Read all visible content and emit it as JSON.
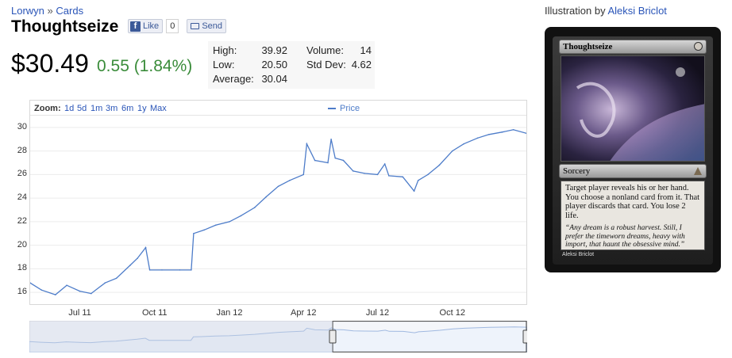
{
  "breadcrumb": {
    "set": "Lorwyn",
    "sep": "»",
    "section": "Cards"
  },
  "card": {
    "name": "Thoughtseize"
  },
  "social": {
    "like_label": "Like",
    "like_count": "0",
    "send_label": "Send"
  },
  "price": {
    "current": "$30.49",
    "change": "0.55 (1.84%)",
    "change_color": "#3a8c3a"
  },
  "stats": {
    "high_label": "High:",
    "high": "39.92",
    "low_label": "Low:",
    "low": "20.50",
    "average_label": "Average:",
    "average": "30.04",
    "volume_label": "Volume:",
    "volume": "14",
    "stddev_label": "Std Dev:",
    "stddev": "4.62"
  },
  "zoom": {
    "label": "Zoom:",
    "options": [
      "1d",
      "5d",
      "1m",
      "3m",
      "6m",
      "1y",
      "Max"
    ]
  },
  "illustration": {
    "prefix": "Illustration by",
    "artist": "Aleksi Briclot"
  },
  "card_image": {
    "name": "Thoughtseize",
    "type_line": "Sorcery",
    "rules": "Target player reveals his or her hand. You choose a nonland card from it. That player discards that card. You lose 2 life.",
    "flavor": "“Any dream is a robust harvest. Still, I prefer the timeworn dreams, heavy with import, that haunt the obsessive mind.”",
    "artist_credit": "Aleksi Briclot"
  },
  "colors": {
    "line": "#4d7cc9",
    "link": "#2a55b8",
    "navigator_fill": "#eef3fb"
  },
  "chart_data": {
    "type": "line",
    "legend": [
      "Price"
    ],
    "ylim": [
      15,
      31
    ],
    "yticks": [
      16,
      18,
      20,
      22,
      24,
      26,
      28,
      30
    ],
    "xtick_labels": [
      "Jul 11",
      "Oct 11",
      "Jan 12",
      "Apr 12",
      "Jul 12",
      "Oct 12"
    ],
    "xtick_dates": [
      "2011-07-01",
      "2011-10-01",
      "2012-01-01",
      "2012-04-01",
      "2012-07-01",
      "2012-10-01"
    ],
    "x_range": [
      "2011-05-01",
      "2012-12-31"
    ],
    "series": [
      {
        "name": "Price",
        "x": [
          "2011-05-01",
          "2011-05-15",
          "2011-06-01",
          "2011-06-15",
          "2011-07-01",
          "2011-07-15",
          "2011-08-01",
          "2011-08-15",
          "2011-09-01",
          "2011-09-10",
          "2011-09-20",
          "2011-09-25",
          "2011-10-10",
          "2011-11-01",
          "2011-11-15",
          "2011-11-18",
          "2011-12-01",
          "2011-12-15",
          "2012-01-01",
          "2012-01-15",
          "2012-02-01",
          "2012-02-15",
          "2012-03-01",
          "2012-03-15",
          "2012-04-01",
          "2012-04-05",
          "2012-04-15",
          "2012-05-01",
          "2012-05-05",
          "2012-05-10",
          "2012-05-20",
          "2012-06-01",
          "2012-06-15",
          "2012-07-01",
          "2012-07-10",
          "2012-07-15",
          "2012-08-01",
          "2012-08-15",
          "2012-08-20",
          "2012-09-01",
          "2012-09-15",
          "2012-10-01",
          "2012-10-15",
          "2012-11-01",
          "2012-11-15",
          "2012-12-01",
          "2012-12-15",
          "2012-12-31"
        ],
        "y": [
          16.8,
          16.2,
          15.8,
          16.6,
          16.1,
          15.9,
          16.8,
          17.2,
          18.3,
          18.9,
          19.8,
          17.9,
          17.9,
          17.9,
          17.9,
          21.0,
          21.3,
          21.7,
          22.0,
          22.5,
          23.2,
          24.1,
          25.0,
          25.5,
          26.0,
          28.6,
          27.2,
          27.0,
          29.0,
          27.4,
          27.2,
          26.3,
          26.1,
          26.0,
          26.9,
          25.9,
          25.8,
          24.6,
          25.5,
          26.0,
          26.8,
          28.0,
          28.6,
          29.1,
          29.4,
          29.6,
          29.8,
          29.5
        ]
      }
    ]
  }
}
